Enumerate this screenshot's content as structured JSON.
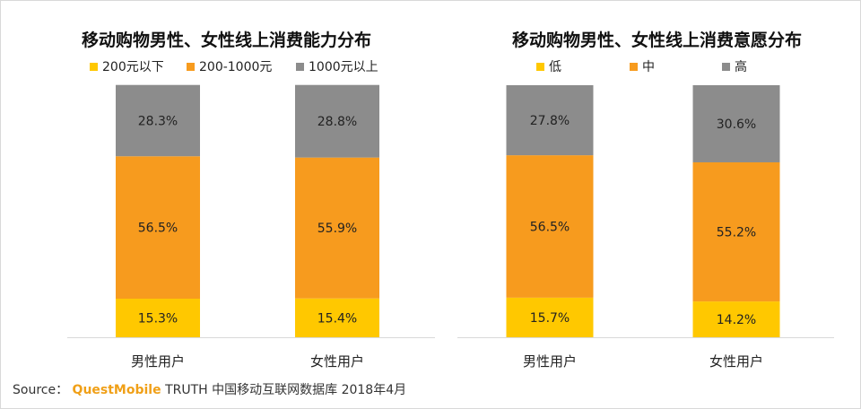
{
  "colors": {
    "low": "#ffc800",
    "mid": "#f79b1e",
    "high": "#8c8c8c",
    "axis": "#d9d9d9",
    "brand": "#f0a018"
  },
  "chart_data": [
    {
      "type": "bar",
      "stacked": true,
      "title": "移动购物男性、女性线上消费能力分布",
      "categories": [
        "男性用户",
        "女性用户"
      ],
      "series": [
        {
          "name": "200元以下",
          "values": [
            15.3,
            15.4
          ],
          "labels": [
            "15.3%",
            "15.4%"
          ],
          "color": "#ffc800"
        },
        {
          "name": "200-1000元",
          "values": [
            56.5,
            55.9
          ],
          "labels": [
            "56.5%",
            "55.9%"
          ],
          "color": "#f79b1e"
        },
        {
          "name": "1000元以上",
          "values": [
            28.3,
            28.8
          ],
          "labels": [
            "28.3%",
            "28.8%"
          ],
          "color": "#8c8c8c"
        }
      ],
      "ylim": [
        0,
        100
      ],
      "grid": false,
      "legend": "top"
    },
    {
      "type": "bar",
      "stacked": true,
      "title": "移动购物男性、女性线上消费意愿分布",
      "categories": [
        "男性用户",
        "女性用户"
      ],
      "series": [
        {
          "name": "低",
          "values": [
            15.7,
            14.2
          ],
          "labels": [
            "15.7%",
            "14.2%"
          ],
          "color": "#ffc800"
        },
        {
          "name": "中",
          "values": [
            56.5,
            55.2
          ],
          "labels": [
            "56.5%",
            "55.2%"
          ],
          "color": "#f79b1e"
        },
        {
          "name": "高",
          "values": [
            27.8,
            30.6
          ],
          "labels": [
            "27.8%",
            "30.6%"
          ],
          "color": "#8c8c8c"
        }
      ],
      "ylim": [
        0,
        100
      ],
      "grid": false,
      "legend": "top"
    }
  ],
  "source": {
    "prefix": "Source：",
    "brand": "QuestMobile",
    "rest": "TRUTH 中国移动互联网数据库 2018年4月"
  }
}
